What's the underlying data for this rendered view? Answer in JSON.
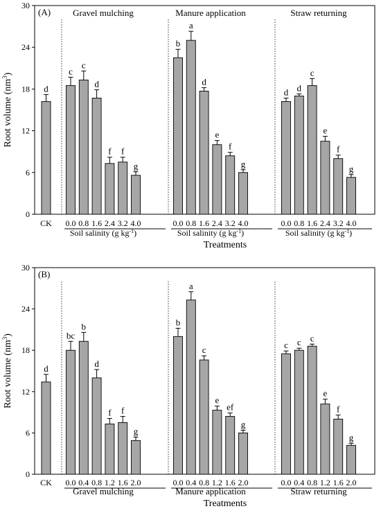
{
  "chart_data": [
    {
      "type": "bar",
      "panel_label": "(A)",
      "ylabel": "Root volume (nm",
      "ylabel_sup": "3",
      "ylabel_end": ")",
      "xlabel": "Treatments",
      "ylim": [
        0,
        30
      ],
      "yticks": [
        "0",
        "6",
        "12",
        "18",
        "24",
        "30"
      ],
      "bar_color": "#a6a6a6",
      "ck": {
        "label": "CK",
        "value": 16.2,
        "err": 1.0,
        "letter": "d"
      },
      "groups": [
        {
          "name": "Gravel mulching",
          "axis_label": "Soil salinity (g kg",
          "axis_label_sup": "-1",
          "axis_label_end": ")",
          "categories": [
            "0.0",
            "0.8",
            "1.6",
            "2.4",
            "3.2",
            "4.0"
          ],
          "values": [
            18.5,
            19.3,
            16.7,
            7.3,
            7.5,
            5.6
          ],
          "errors": [
            1.2,
            1.3,
            1.2,
            0.9,
            0.7,
            0.5
          ],
          "letters": [
            "c",
            "c",
            "d",
            "f",
            "f",
            "g"
          ]
        },
        {
          "name": "Manure application",
          "axis_label": "Soil salinity (g kg",
          "axis_label_sup": "-1",
          "axis_label_end": ")",
          "categories": [
            "0.0",
            "0.8",
            "1.6",
            "2.4",
            "3.2",
            "4.0"
          ],
          "values": [
            22.5,
            25.0,
            17.7,
            10.0,
            8.4,
            6.0
          ],
          "errors": [
            1.2,
            1.3,
            0.5,
            0.6,
            0.5,
            0.4
          ],
          "letters": [
            "b",
            "a",
            "d",
            "e",
            "f",
            "g"
          ]
        },
        {
          "name": "Straw returning",
          "axis_label": "Soil salinity (g kg",
          "axis_label_sup": "-1",
          "axis_label_end": ")",
          "categories": [
            "0.0",
            "0.8",
            "1.6",
            "2.4",
            "3.2",
            "4.0"
          ],
          "values": [
            16.2,
            17.0,
            18.5,
            10.5,
            8.0,
            5.3
          ],
          "errors": [
            0.5,
            0.3,
            1.0,
            0.7,
            0.5,
            0.4
          ],
          "letters": [
            "d",
            "d",
            "c",
            "e",
            "f",
            "g"
          ]
        }
      ]
    },
    {
      "type": "bar",
      "panel_label": "(B)",
      "ylabel": "Root volume (nm",
      "ylabel_sup": "3",
      "ylabel_end": ")",
      "xlabel": "Treatments",
      "ylim": [
        0,
        30
      ],
      "yticks": [
        "0",
        "6",
        "12",
        "18",
        "24",
        "30"
      ],
      "bar_color": "#a6a6a6",
      "ck": {
        "label": "CK",
        "value": 13.4,
        "err": 1.1,
        "letter": "d"
      },
      "groups": [
        {
          "name": "Gravel mulching",
          "categories": [
            "0.0",
            "0.4",
            "0.8",
            "1.2",
            "1.6",
            "2.0"
          ],
          "values": [
            18.0,
            19.3,
            14.0,
            7.3,
            7.5,
            4.9
          ],
          "errors": [
            1.3,
            1.3,
            1.2,
            0.8,
            0.9,
            0.5
          ],
          "letters": [
            "bc",
            "b",
            "d",
            "f",
            "f",
            "g"
          ]
        },
        {
          "name": "Manure application",
          "categories": [
            "0.0",
            "0.4",
            "0.8",
            "1.2",
            "1.6",
            "2.0"
          ],
          "values": [
            20.0,
            25.3,
            16.6,
            9.3,
            8.4,
            6.0
          ],
          "errors": [
            1.2,
            1.2,
            0.6,
            0.6,
            0.5,
            0.4
          ],
          "letters": [
            "b",
            "a",
            "c",
            "e",
            "ef",
            "g"
          ]
        },
        {
          "name": "Straw returning",
          "categories": [
            "0.0",
            "0.4",
            "0.8",
            "1.2",
            "1.6",
            "2.0"
          ],
          "values": [
            17.5,
            18.0,
            18.6,
            10.2,
            8.0,
            4.2
          ],
          "errors": [
            0.4,
            0.3,
            0.3,
            0.7,
            0.6,
            0.3
          ],
          "letters": [
            "c",
            "c",
            "c",
            "e",
            "f",
            "g"
          ]
        }
      ]
    }
  ]
}
